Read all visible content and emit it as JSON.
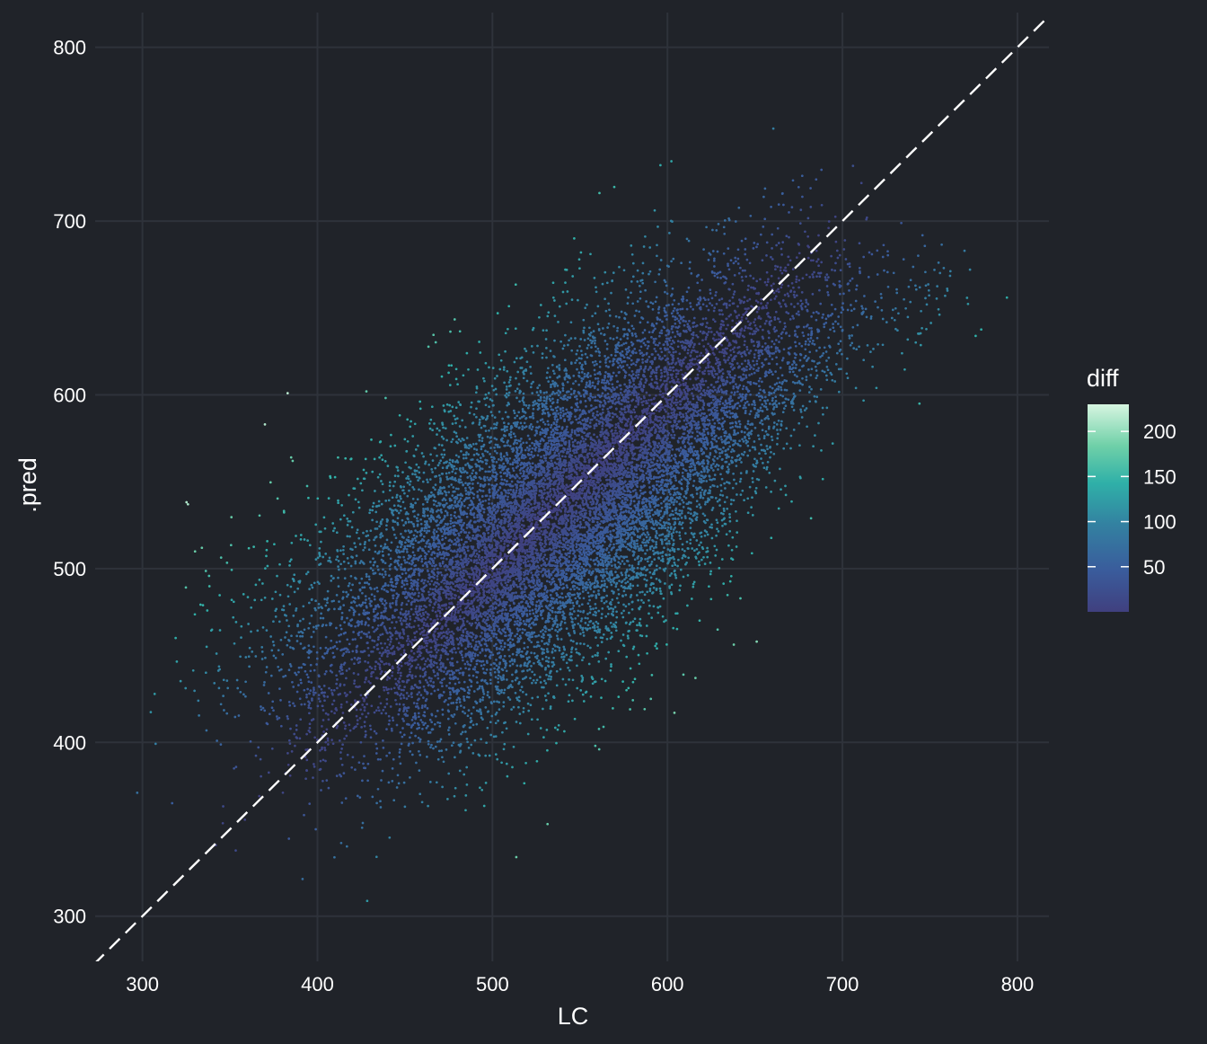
{
  "chart_data": {
    "type": "scatter",
    "title": "",
    "xlabel": "LC",
    "ylabel": ".pred",
    "xlim": [
      273,
      818
    ],
    "ylim": [
      274,
      820
    ],
    "x_ticks": [
      300,
      400,
      500,
      600,
      700,
      800
    ],
    "y_ticks": [
      300,
      400,
      500,
      600,
      700,
      800
    ],
    "x_tick_labels": [
      "300",
      "400",
      "500",
      "600",
      "700",
      "800"
    ],
    "y_tick_labels": [
      "300",
      "400",
      "500",
      "600",
      "700",
      "800"
    ],
    "grid": true,
    "reference_line": {
      "slope": 1,
      "intercept": 0,
      "style": "dashed",
      "color": "#ffffff"
    },
    "color_scale": {
      "variable": "diff",
      "title": "diff",
      "min": 0,
      "max": 230,
      "ticks": [
        50,
        100,
        150,
        200
      ],
      "tick_labels": [
        "50",
        "100",
        "150",
        "200"
      ],
      "colors": [
        "#40407f",
        "#3a5c9c",
        "#3381a1",
        "#2fb0a8",
        "#6fd0a8",
        "#d6f5e0"
      ]
    },
    "legend_position": "right",
    "point_cloud": {
      "approx_count": 15000,
      "trend": "linear",
      "points_summary": [
        {
          "LC": 300,
          "pred_mean": 432,
          "pred_spread": 35
        },
        {
          "LC": 400,
          "pred_mean": 452,
          "pred_spread": 45
        },
        {
          "LC": 500,
          "pred_mean": 505,
          "pred_spread": 45
        },
        {
          "LC": 600,
          "pred_mean": 572,
          "pred_spread": 45
        },
        {
          "LC": 700,
          "pred_mean": 650,
          "pred_spread": 30
        },
        {
          "LC": 790,
          "pred_mean": 660,
          "pred_spread": 10
        }
      ]
    },
    "outliers": [
      {
        "LC": 297,
        "pred": 371
      },
      {
        "LC": 317,
        "pred": 365
      },
      {
        "LC": 326,
        "pred": 537
      },
      {
        "LC": 370,
        "pred": 583
      },
      {
        "LC": 383,
        "pred": 601
      },
      {
        "LC": 385,
        "pred": 564
      },
      {
        "LC": 428,
        "pred": 602
      },
      {
        "LC": 450,
        "pred": 363
      },
      {
        "LC": 503,
        "pred": 647
      },
      {
        "LC": 556,
        "pred": 681
      },
      {
        "LC": 561,
        "pred": 396
      },
      {
        "LC": 604,
        "pred": 417
      },
      {
        "LC": 651,
        "pred": 458
      },
      {
        "LC": 685,
        "pred": 724
      },
      {
        "LC": 744,
        "pred": 595
      },
      {
        "LC": 794,
        "pred": 656
      },
      {
        "LC": 760,
        "pred": 660
      },
      {
        "LC": 714,
        "pred": 702
      }
    ]
  }
}
